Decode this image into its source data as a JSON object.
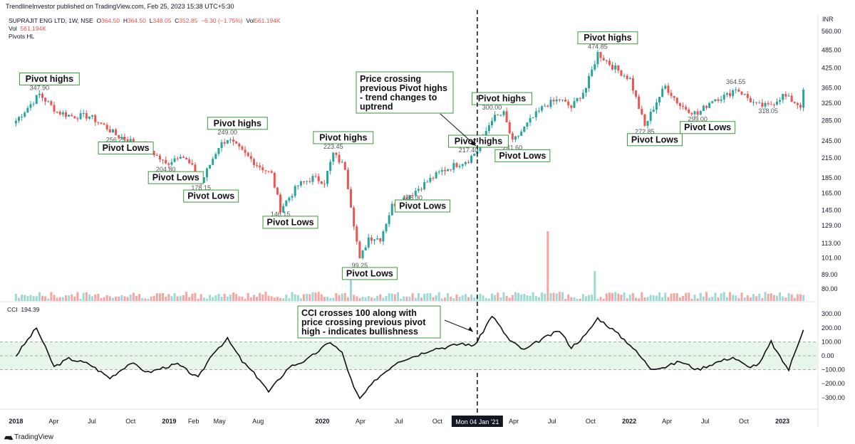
{
  "header": {
    "published_by": "TrendlineInvestor published on TradingView.com, Feb 25, 2023 15:38 UTC+5:30"
  },
  "legend": {
    "symbol": "SUPRAJIT ENG LTD, 1W, NSE",
    "open_label": "O",
    "open": "364.50",
    "high_label": "H",
    "high": "364.50",
    "low_label": "L",
    "low": "348.05",
    "close_label": "C",
    "close": "352.85",
    "change": "−6.30 (−1.75%)",
    "vol_label": "Vol",
    "vol": "561.194K",
    "vol_row_label": "Vol",
    "vol_row_value": "561.194K",
    "pivots_label": "Pivots HL",
    "cci_label": "CCI",
    "cci_value": "194.39",
    "currency": "INR"
  },
  "colors": {
    "up": "#26a69a",
    "down": "#ef5350",
    "up_vol": "#9ed9d3",
    "down_vol": "#f5a5a3",
    "cci_band": "#e8f5e9",
    "annotation_border": "#3a9a3a"
  },
  "footer": {
    "brand": "TradingView",
    "crosshair_date": "Mon 04 Jan '21"
  },
  "chart_data": [
    {
      "type": "candlestick",
      "y_scale": "log",
      "y_ticks": [
        "560.00",
        "485.00",
        "425.00",
        "365.00",
        "325.00",
        "285.00",
        "245.00",
        "215.00",
        "185.00",
        "165.00",
        "145.00",
        "129.00",
        "113.00",
        "101.00",
        "89.00",
        "80.00"
      ],
      "x_ticks": [
        "2018",
        "Apr",
        "Jul",
        "Oct",
        "2019",
        "Feb",
        "May",
        "Aug",
        "2020",
        "Apr",
        "Jul",
        "Oct",
        "Apr",
        "Jul",
        "Oct",
        "2022",
        "Apr",
        "Jul",
        "Oct",
        "2023"
      ],
      "close_path": [
        [
          "2018-01-01",
          285
        ],
        [
          "2018-02-26",
          347.9
        ],
        [
          "2018-04-09",
          305
        ],
        [
          "2018-05-14",
          295
        ],
        [
          "2018-06-25",
          295
        ],
        [
          "2018-08-06",
          270
        ],
        [
          "2018-08-27",
          256.25
        ],
        [
          "2018-10-01",
          245
        ],
        [
          "2018-11-12",
          232
        ],
        [
          "2018-12-24",
          204.8
        ],
        [
          "2019-01-28",
          222
        ],
        [
          "2019-02-25",
          200
        ],
        [
          "2019-03-18",
          178.15
        ],
        [
          "2019-04-29",
          235
        ],
        [
          "2019-05-20",
          249
        ],
        [
          "2019-06-24",
          225
        ],
        [
          "2019-07-29",
          205
        ],
        [
          "2019-09-02",
          190
        ],
        [
          "2019-09-23",
          146.15
        ],
        [
          "2019-11-04",
          175
        ],
        [
          "2019-12-09",
          185
        ],
        [
          "2020-01-06",
          180
        ],
        [
          "2020-01-27",
          222
        ],
        [
          "2020-02-24",
          200
        ],
        [
          "2020-03-30",
          99.25
        ],
        [
          "2020-04-20",
          118
        ],
        [
          "2020-05-18",
          117
        ],
        [
          "2020-06-15",
          150
        ],
        [
          "2020-08-03",
          165.3
        ],
        [
          "2020-09-07",
          180
        ],
        [
          "2020-10-12",
          195
        ],
        [
          "2020-11-16",
          205
        ],
        [
          "2020-12-14",
          212.4
        ],
        [
          "2021-01-04",
          228
        ],
        [
          "2021-02-08",
          290
        ],
        [
          "2021-03-08",
          300
        ],
        [
          "2021-03-29",
          241.6
        ],
        [
          "2021-05-10",
          285
        ],
        [
          "2021-06-14",
          320
        ],
        [
          "2021-07-19",
          335
        ],
        [
          "2021-08-16",
          315
        ],
        [
          "2021-09-20",
          365
        ],
        [
          "2021-10-18",
          474.85
        ],
        [
          "2021-11-22",
          430
        ],
        [
          "2022-01-03",
          390
        ],
        [
          "2022-02-07",
          272.85
        ],
        [
          "2022-03-07",
          330
        ],
        [
          "2022-03-28",
          370
        ],
        [
          "2022-05-02",
          320
        ],
        [
          "2022-06-13",
          299
        ],
        [
          "2022-07-18",
          335
        ],
        [
          "2022-08-22",
          345
        ],
        [
          "2022-09-12",
          364.55
        ],
        [
          "2022-10-31",
          320
        ],
        [
          "2022-11-28",
          318.05
        ],
        [
          "2023-01-02",
          345
        ],
        [
          "2023-02-13",
          320
        ],
        [
          "2023-02-20",
          352.85
        ]
      ],
      "pivot_labels": [
        {
          "date": "2018-02-26",
          "value": "347.90",
          "pos": "above"
        },
        {
          "date": "2018-08-27",
          "value": "256.25",
          "pos": "below"
        },
        {
          "date": "2018-12-24",
          "value": "204.80",
          "pos": "below"
        },
        {
          "date": "2019-03-18",
          "value": "178.15",
          "pos": "below"
        },
        {
          "date": "2019-05-20",
          "value": "249.00",
          "pos": "above"
        },
        {
          "date": "2019-09-23",
          "value": "146.15",
          "pos": "below"
        },
        {
          "date": "2020-01-27",
          "value": "223.45",
          "pos": "above"
        },
        {
          "date": "2020-03-30",
          "value": "99.25",
          "pos": "below"
        },
        {
          "date": "2020-08-03",
          "value": "165.30",
          "pos": "below"
        },
        {
          "date": "2020-12-14",
          "value": "217.40",
          "pos": "above"
        },
        {
          "date": "2021-02-08",
          "value": "300.00",
          "pos": "above"
        },
        {
          "date": "2021-03-29",
          "value": "241.60",
          "pos": "below"
        },
        {
          "date": "2021-10-18",
          "value": "474.85",
          "pos": "above"
        },
        {
          "date": "2022-02-07",
          "value": "272.85",
          "pos": "below"
        },
        {
          "date": "2022-06-13",
          "value": "299.00",
          "pos": "below"
        },
        {
          "date": "2022-09-12",
          "value": "364.55",
          "pos": "above"
        },
        {
          "date": "2022-11-28",
          "value": "318.05",
          "pos": "below"
        }
      ],
      "volume_spikes": [
        {
          "date": "2020-03-09",
          "vol": "high",
          "dir": "up"
        },
        {
          "date": "2021-06-21",
          "vol": "very_high",
          "dir": "down"
        },
        {
          "date": "2021-10-11",
          "vol": "high",
          "dir": "up"
        }
      ],
      "annotations": [
        {
          "text": "Pivot highs",
          "date": "2018-02-26",
          "anchor": "above"
        },
        {
          "text": "Pivot Lows",
          "date": "2018-08-27",
          "anchor": "below"
        },
        {
          "text": "Pivot Lows",
          "date": "2018-12-24",
          "anchor": "below"
        },
        {
          "text": "Pivot Lows",
          "date": "2019-03-18",
          "anchor": "below"
        },
        {
          "text": "Pivot highs",
          "date": "2019-05-20",
          "anchor": "above"
        },
        {
          "text": "Pivot Lows",
          "date": "2019-09-23",
          "anchor": "below"
        },
        {
          "text": "Pivot highs",
          "date": "2020-01-27",
          "anchor": "above"
        },
        {
          "text": "Pivot Lows",
          "date": "2020-03-30",
          "anchor": "below"
        },
        {
          "text": "Pivot Lows",
          "date": "2020-08-03",
          "anchor": "below"
        },
        {
          "text": "Pivot highs",
          "date": "2020-12-14",
          "anchor": "above"
        },
        {
          "text": "Pivot highs",
          "date": "2021-02-08",
          "anchor": "above"
        },
        {
          "text": "Pivot Lows",
          "date": "2021-03-29",
          "anchor": "below"
        },
        {
          "text": "Pivot highs",
          "date": "2021-10-18",
          "anchor": "above"
        },
        {
          "text": "Pivot Lows",
          "date": "2022-02-07",
          "anchor": "below"
        },
        {
          "text": "Pivot Lows",
          "date": "2022-06-13",
          "anchor": "below"
        }
      ],
      "callout": "Price crossing\nprevious Pivot highs\n- trend changes to\nuptrend",
      "crosshair_date": "2021-01-04"
    },
    {
      "type": "line",
      "name": "CCI",
      "y_ticks": [
        "300.00",
        "200.00",
        "100.00",
        "0.00",
        "−100.00",
        "−200.00",
        "−300.00"
      ],
      "band": [
        -100,
        100
      ],
      "callout": "CCI crosses 100 along with\nprice crossing previous pivot\nhigh - indicates bullishness",
      "values_path": [
        [
          "2018-01-01",
          0
        ],
        [
          "2018-02-19",
          200
        ],
        [
          "2018-04-02",
          -80
        ],
        [
          "2018-05-07",
          -20
        ],
        [
          "2018-06-25",
          -60
        ],
        [
          "2018-08-13",
          -160
        ],
        [
          "2018-10-01",
          -50
        ],
        [
          "2018-11-12",
          -120
        ],
        [
          "2018-12-24",
          -80
        ],
        [
          "2019-01-21",
          -60
        ],
        [
          "2019-03-11",
          -160
        ],
        [
          "2019-04-15",
          20
        ],
        [
          "2019-05-20",
          120
        ],
        [
          "2019-06-24",
          -40
        ],
        [
          "2019-08-05",
          -170
        ],
        [
          "2019-08-26",
          -260
        ],
        [
          "2019-10-14",
          -80
        ],
        [
          "2019-11-25",
          -30
        ],
        [
          "2020-01-20",
          100
        ],
        [
          "2020-02-17",
          20
        ],
        [
          "2020-03-16",
          -230
        ],
        [
          "2020-03-30",
          -310
        ],
        [
          "2020-05-11",
          -160
        ],
        [
          "2020-06-29",
          -40
        ],
        [
          "2020-08-10",
          0
        ],
        [
          "2020-09-21",
          50
        ],
        [
          "2020-10-19",
          60
        ],
        [
          "2020-11-30",
          90
        ],
        [
          "2020-12-21",
          70
        ],
        [
          "2021-01-04",
          100
        ],
        [
          "2021-02-08",
          290
        ],
        [
          "2021-03-22",
          110
        ],
        [
          "2021-04-26",
          40
        ],
        [
          "2021-06-07",
          120
        ],
        [
          "2021-07-19",
          180
        ],
        [
          "2021-08-16",
          60
        ],
        [
          "2021-09-20",
          150
        ],
        [
          "2021-10-18",
          270
        ],
        [
          "2021-11-22",
          190
        ],
        [
          "2022-01-03",
          80
        ],
        [
          "2022-02-21",
          -90
        ],
        [
          "2022-03-28",
          -80
        ],
        [
          "2022-05-02",
          -40
        ],
        [
          "2022-06-13",
          -100
        ],
        [
          "2022-07-25",
          -50
        ],
        [
          "2022-09-05",
          -10
        ],
        [
          "2022-10-10",
          -80
        ],
        [
          "2022-11-07",
          -60
        ],
        [
          "2022-12-05",
          100
        ],
        [
          "2022-12-26",
          -10
        ],
        [
          "2023-01-16",
          -100
        ],
        [
          "2023-02-20",
          194.39
        ]
      ]
    }
  ]
}
